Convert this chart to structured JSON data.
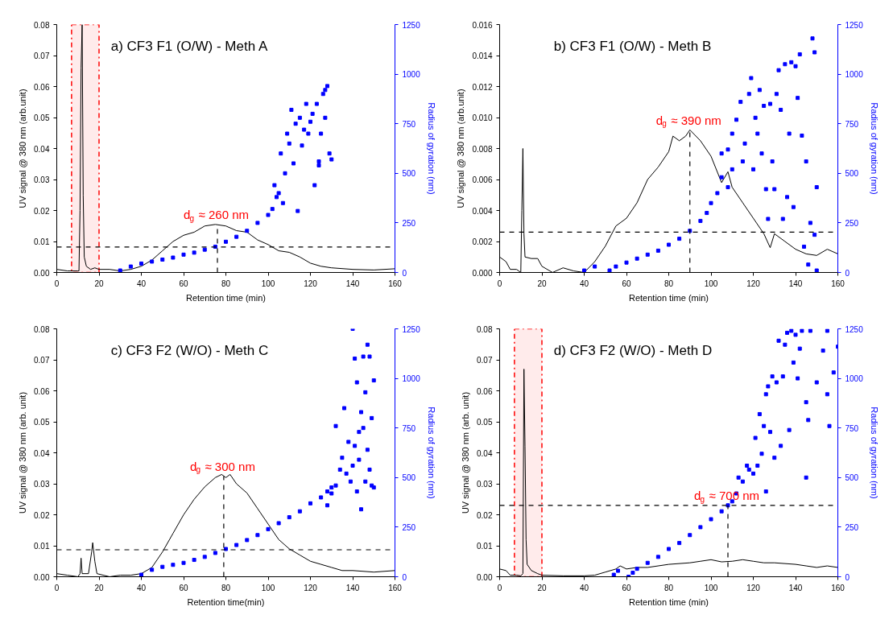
{
  "chart_data": [
    {
      "type": "line",
      "title": "a) CF3 F1 (O/W) - Meth A",
      "xlabel": "Retention time (min)",
      "ylabel": "UV signal @ 380 nm (arb.unit)",
      "y2label": "Radius of gyration (nm)",
      "xlim": [
        0,
        160
      ],
      "xticks": [
        0,
        20,
        40,
        60,
        80,
        100,
        120,
        140,
        160
      ],
      "ylim": [
        0,
        0.08
      ],
      "yticks": [
        {
          "value": 0,
          "label": "0.00"
        },
        {
          "value": 0.01,
          "label": "0.01"
        },
        {
          "value": 0.02,
          "label": "0.02"
        },
        {
          "value": 0.03,
          "label": "0.03"
        },
        {
          "value": 0.04,
          "label": "0.04"
        },
        {
          "value": 0.05,
          "label": "0.05"
        },
        {
          "value": 0.06,
          "label": "0.06"
        },
        {
          "value": 0.07,
          "label": "0.07"
        },
        {
          "value": 0.08,
          "label": "0.08"
        }
      ],
      "y2lim": [
        0,
        1250
      ],
      "y2ticks": [
        0,
        250,
        500,
        750,
        1000,
        1250
      ],
      "series": [
        {
          "color": "#000000",
          "marker": "none",
          "x": [
            0,
            5,
            10,
            10.5,
            11,
            11.5,
            12,
            12.5,
            13,
            14,
            16,
            18,
            20,
            25,
            30,
            35,
            40,
            45,
            50,
            55,
            60,
            65,
            70,
            75,
            80,
            85,
            90,
            95,
            100,
            105,
            110,
            115,
            120,
            125,
            130,
            140,
            150,
            160
          ],
          "values": [
            0.001,
            0.0005,
            0.0005,
            0.0005,
            0.02,
            0.066,
            0.08,
            0.025,
            0.005,
            0.002,
            0.001,
            0.0015,
            0.001,
            0.001,
            0.0005,
            0.001,
            0.002,
            0.004,
            0.007,
            0.01,
            0.012,
            0.013,
            0.015,
            0.0155,
            0.015,
            0.0135,
            0.013,
            0.0105,
            0.009,
            0.007,
            0.0065,
            0.005,
            0.003,
            0.002,
            0.0015,
            0.001,
            0.0008,
            0.0012
          ]
        },
        {
          "type": "scatter",
          "axis": "y2",
          "color": "#0000ff",
          "marker": "square",
          "x": [
            30,
            35,
            40,
            45,
            50,
            55,
            60,
            65,
            70,
            75,
            80,
            85,
            90,
            95,
            100,
            102,
            103,
            104,
            105,
            106,
            107,
            108,
            109,
            110,
            111,
            112,
            113,
            114,
            115,
            116,
            117,
            118,
            119,
            120,
            121,
            122,
            123,
            124,
            125,
            126,
            127,
            128,
            129,
            130,
            127,
            124
          ],
          "values": [
            10,
            30,
            45,
            55,
            65,
            75,
            90,
            100,
            115,
            130,
            155,
            180,
            210,
            250,
            290,
            320,
            440,
            380,
            400,
            600,
            350,
            500,
            700,
            650,
            820,
            550,
            750,
            310,
            780,
            640,
            720,
            850,
            700,
            760,
            800,
            440,
            850,
            560,
            700,
            900,
            780,
            940,
            600,
            570,
            920,
            540
          ]
        }
      ],
      "ref_lines": [
        {
          "axis": "y",
          "value": 0.0082,
          "color": "#000000",
          "line_style": "dashed"
        },
        {
          "axis": "x",
          "value": 76,
          "color": "#000000",
          "line_style": "dashed"
        }
      ],
      "bands": [
        {
          "axis": "x",
          "from": 7,
          "to": 20,
          "color": "#ff0000"
        }
      ],
      "annotations": [
        "d$_{g}$ ≈ 260 nm"
      ]
    },
    {
      "type": "line",
      "title": "b) CF3 F1 (O/W) - Meth B",
      "xlabel": "Retention time (min)",
      "ylabel": "UV signal @ 380 nm (arb.unit)",
      "y2label": "Radius of gyration (nm)",
      "xlim": [
        0,
        160
      ],
      "xticks": [
        0,
        20,
        40,
        60,
        80,
        100,
        120,
        140,
        160
      ],
      "ylim": [
        0,
        0.016
      ],
      "yticks": [
        {
          "value": 0,
          "label": "0.000"
        },
        {
          "value": 0.002,
          "label": "0.002"
        },
        {
          "value": 0.004,
          "label": "0.004"
        },
        {
          "value": 0.006,
          "label": "0.006"
        },
        {
          "value": 0.008,
          "label": "0.008"
        },
        {
          "value": 0.01,
          "label": "0.010"
        },
        {
          "value": 0.012,
          "label": "0.012"
        },
        {
          "value": 0.014,
          "label": "0.014"
        },
        {
          "value": 0.016,
          "label": "0.016"
        }
      ],
      "y2lim": [
        0,
        1250
      ],
      "y2ticks": [
        0,
        250,
        500,
        750,
        1000,
        1250
      ],
      "series": [
        {
          "color": "#000000",
          "marker": "none",
          "x": [
            0,
            3,
            5,
            8,
            10,
            10.5,
            11,
            11.5,
            12,
            15,
            18,
            20,
            25,
            30,
            35,
            40,
            45,
            50,
            55,
            60,
            65,
            70,
            75,
            80,
            82,
            85,
            88,
            90,
            95,
            100,
            105,
            108,
            110,
            115,
            120,
            125,
            128,
            130,
            135,
            140,
            145,
            150,
            155,
            160
          ],
          "values": [
            0.001,
            0.0007,
            0.0002,
            0.0002,
            0,
            0.004,
            0.008,
            0.0025,
            0.001,
            0.0009,
            0.0009,
            0.0004,
            0,
            0.0003,
            0.0001,
            0,
            0.0007,
            0.0017,
            0.003,
            0.0035,
            0.0045,
            0.006,
            0.0068,
            0.0078,
            0.0088,
            0.0085,
            0.0088,
            0.0092,
            0.0085,
            0.0075,
            0.0058,
            0.0065,
            0.0055,
            0.0045,
            0.0035,
            0.0025,
            0.0016,
            0.0025,
            0.002,
            0.0015,
            0.0012,
            0.0011,
            0.0015,
            0.0012
          ]
        },
        {
          "type": "scatter",
          "axis": "y2",
          "color": "#0000ff",
          "marker": "square",
          "x": [
            40,
            45,
            52,
            55,
            60,
            65,
            70,
            75,
            80,
            85,
            90,
            95,
            98,
            100,
            103,
            105,
            108,
            110,
            105,
            108,
            110,
            112,
            114,
            115,
            116,
            118,
            119,
            120,
            121,
            122,
            123,
            124,
            125,
            126,
            127,
            128,
            129,
            130,
            131,
            132,
            133,
            134,
            135,
            136,
            137,
            138,
            139,
            140,
            141,
            142,
            143,
            144,
            145,
            146,
            147,
            148,
            149,
            150,
            149,
            150
          ],
          "values": [
            10,
            30,
            10,
            30,
            50,
            70,
            90,
            110,
            140,
            170,
            210,
            260,
            300,
            350,
            400,
            480,
            430,
            520,
            600,
            620,
            700,
            770,
            860,
            560,
            650,
            900,
            980,
            520,
            780,
            700,
            920,
            600,
            840,
            420,
            270,
            850,
            560,
            420,
            900,
            1020,
            820,
            270,
            1050,
            380,
            700,
            1060,
            330,
            1040,
            880,
            1100,
            690,
            130,
            560,
            40,
            250,
            1180,
            1110,
            430,
            190,
            10
          ]
        }
      ],
      "ref_lines": [
        {
          "axis": "y",
          "value": 0.0026,
          "color": "#000000",
          "line_style": "dashed"
        },
        {
          "axis": "x",
          "value": 90,
          "color": "#000000",
          "line_style": "dashed"
        }
      ],
      "annotations": [
        "d$_{g}$ ≈ 390 nm"
      ]
    },
    {
      "type": "line",
      "title": "c) CF3 F2 (W/O) - Meth C",
      "xlabel": "Retention time(min)",
      "ylabel": "UV signal @ 380 nm (arb. unit)",
      "y2label": "Radius of gyration (nm)",
      "xlim": [
        0,
        160
      ],
      "xticks": [
        0,
        20,
        40,
        60,
        80,
        100,
        120,
        140,
        160
      ],
      "ylim": [
        0,
        0.08
      ],
      "yticks": [
        {
          "value": 0,
          "label": "0.00"
        },
        {
          "value": 0.01,
          "label": "0.01"
        },
        {
          "value": 0.02,
          "label": "0.02"
        },
        {
          "value": 0.03,
          "label": "0.03"
        },
        {
          "value": 0.04,
          "label": "0.04"
        },
        {
          "value": 0.05,
          "label": "0.05"
        },
        {
          "value": 0.06,
          "label": "0.06"
        },
        {
          "value": 0.07,
          "label": "0.07"
        },
        {
          "value": 0.08,
          "label": "0.08"
        }
      ],
      "y2lim": [
        0,
        1250
      ],
      "y2ticks": [
        0,
        250,
        500,
        750,
        1000,
        1250
      ],
      "series": [
        {
          "color": "#000000",
          "marker": "none",
          "x": [
            0,
            5,
            10,
            11,
            11.5,
            12,
            15,
            16.5,
            17,
            18,
            19,
            25,
            30,
            35,
            40,
            45,
            50,
            55,
            60,
            65,
            70,
            75,
            78,
            80,
            82,
            85,
            90,
            95,
            100,
            105,
            110,
            115,
            120,
            125,
            130,
            135,
            140,
            150,
            160
          ],
          "values": [
            0.001,
            0.0005,
            0,
            0.001,
            0.006,
            0.001,
            0.001,
            0.008,
            0.011,
            0.005,
            0.001,
            0,
            0.0005,
            0.0005,
            0.001,
            0.003,
            0.008,
            0.014,
            0.02,
            0.025,
            0.029,
            0.032,
            0.033,
            0.032,
            0.033,
            0.03,
            0.027,
            0.022,
            0.017,
            0.012,
            0.009,
            0.007,
            0.005,
            0.004,
            0.003,
            0.002,
            0.002,
            0.0015,
            0.002
          ]
        },
        {
          "type": "scatter",
          "axis": "y2",
          "color": "#0000ff",
          "marker": "square",
          "x": [
            40,
            45,
            50,
            55,
            60,
            65,
            70,
            75,
            80,
            85,
            90,
            95,
            100,
            105,
            110,
            115,
            120,
            125,
            128,
            130,
            132,
            128,
            130,
            132,
            134,
            135,
            136,
            137,
            138,
            139,
            140,
            140,
            141,
            141,
            142,
            142,
            143,
            143,
            144,
            144,
            145,
            145,
            146,
            146,
            147,
            147,
            148,
            148,
            149,
            149,
            150,
            150
          ],
          "values": [
            10,
            35,
            50,
            60,
            70,
            85,
            100,
            120,
            140,
            160,
            185,
            210,
            240,
            270,
            300,
            330,
            370,
            400,
            430,
            450,
            460,
            360,
            420,
            760,
            540,
            600,
            850,
            520,
            680,
            480,
            1250,
            560,
            660,
            1100,
            980,
            430,
            730,
            590,
            340,
            830,
            750,
            1110,
            480,
            930,
            1170,
            640,
            540,
            1110,
            800,
            460,
            990,
            450
          ]
        }
      ],
      "ref_lines": [
        {
          "axis": "y",
          "value": 0.0087,
          "color": "#000000",
          "line_style": "dashed"
        },
        {
          "axis": "x",
          "value": 79,
          "color": "#000000",
          "line_style": "dashed"
        }
      ],
      "annotations": [
        "d$_{g}$ ≈ 300 nm"
      ]
    },
    {
      "type": "line",
      "title": "d) CF3 F2 (W/O) - Meth D",
      "xlabel": "Retention time (min)",
      "ylabel": "UV signal @ 380 nm (arb. unit)",
      "y2label": "Radius of gyration (nm)",
      "xlim": [
        0,
        160
      ],
      "xticks": [
        0,
        20,
        40,
        60,
        80,
        100,
        120,
        140,
        160
      ],
      "ylim": [
        0,
        0.08
      ],
      "yticks": [
        {
          "value": 0,
          "label": "0.00"
        },
        {
          "value": 0.01,
          "label": "0.01"
        },
        {
          "value": 0.02,
          "label": "0.02"
        },
        {
          "value": 0.03,
          "label": "0.03"
        },
        {
          "value": 0.04,
          "label": "0.04"
        },
        {
          "value": 0.05,
          "label": "0.05"
        },
        {
          "value": 0.06,
          "label": "0.06"
        },
        {
          "value": 0.07,
          "label": "0.07"
        },
        {
          "value": 0.08,
          "label": "0.08"
        }
      ],
      "y2lim": [
        0,
        1250
      ],
      "y2ticks": [
        0,
        250,
        500,
        750,
        1000,
        1250
      ],
      "series": [
        {
          "color": "#000000",
          "marker": "none",
          "x": [
            0,
            3,
            5,
            8,
            10,
            11,
            11.5,
            12,
            12.5,
            13,
            15,
            18,
            20,
            30,
            40,
            45,
            50,
            55,
            57,
            60,
            65,
            70,
            80,
            90,
            95,
            100,
            105,
            110,
            115,
            120,
            125,
            130,
            140,
            145,
            150,
            155,
            160
          ],
          "values": [
            0.0025,
            0.002,
            0.0005,
            0.0005,
            0.0003,
            0.001,
            0.067,
            0.042,
            0.012,
            0.004,
            0.002,
            0.001,
            0.0005,
            0.0003,
            0.0003,
            0.0005,
            0.0015,
            0.0025,
            0.0035,
            0.0025,
            0.003,
            0.003,
            0.004,
            0.0045,
            0.005,
            0.0055,
            0.0048,
            0.005,
            0.0055,
            0.005,
            0.0045,
            0.0045,
            0.004,
            0.0035,
            0.003,
            0.0035,
            0.003
          ]
        },
        {
          "type": "scatter",
          "axis": "y2",
          "color": "#0000ff",
          "marker": "square",
          "x": [
            54,
            56,
            61,
            63,
            65,
            70,
            75,
            80,
            85,
            90,
            95,
            100,
            105,
            108,
            110,
            112,
            113,
            115,
            117,
            118,
            120,
            121,
            122,
            123,
            124,
            125,
            126,
            126,
            127,
            128,
            129,
            130,
            131,
            132,
            133,
            134,
            135,
            136,
            137,
            138,
            139,
            140,
            141,
            142,
            143,
            145,
            145,
            146,
            147,
            150,
            153,
            155,
            156,
            158,
            160,
            155
          ],
          "values": [
            10,
            30,
            0,
            20,
            40,
            70,
            100,
            140,
            170,
            210,
            250,
            290,
            330,
            360,
            380,
            420,
            500,
            480,
            560,
            540,
            520,
            700,
            560,
            820,
            620,
            760,
            920,
            430,
            960,
            730,
            1010,
            600,
            980,
            1190,
            660,
            1010,
            1170,
            1230,
            740,
            1240,
            1080,
            1220,
            1000,
            1150,
            1240,
            500,
            880,
            790,
            1240,
            980,
            1140,
            920,
            760,
            1030,
            1160,
            1240
          ]
        }
      ],
      "ref_lines": [
        {
          "axis": "y",
          "value": 0.023,
          "color": "#000000",
          "line_style": "dashed"
        },
        {
          "axis": "x",
          "value": 108,
          "color": "#000000",
          "line_style": "dashed"
        }
      ],
      "bands": [
        {
          "axis": "x",
          "from": 7,
          "to": 20,
          "color": "#ff0000"
        }
      ],
      "annotations": [
        "d$_{g}$ ≈ 700 nm"
      ]
    }
  ]
}
